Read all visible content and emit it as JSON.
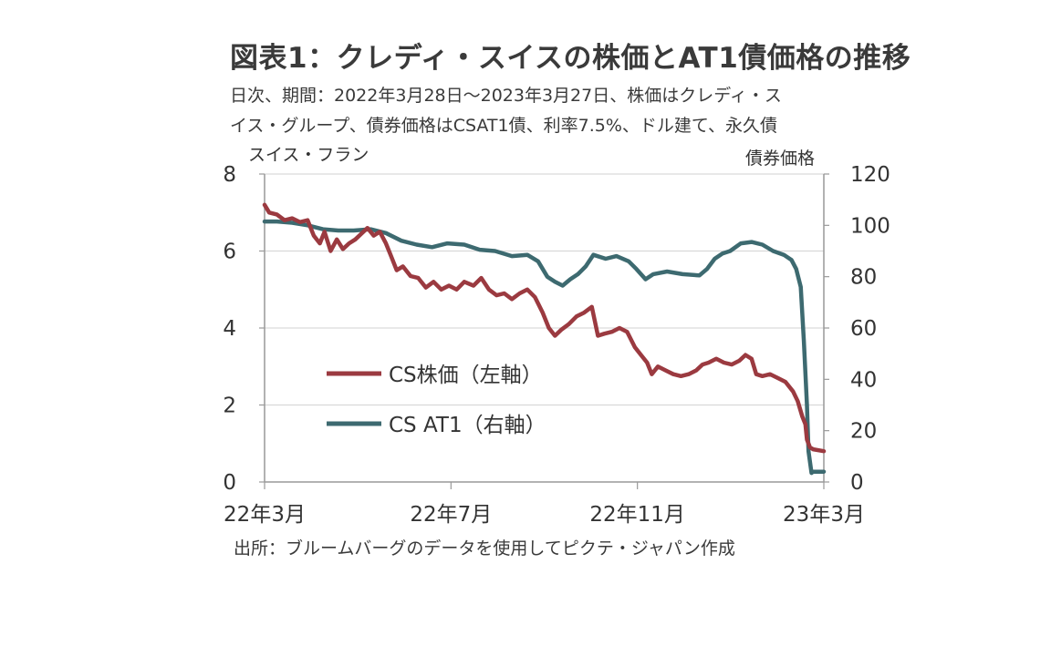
{
  "header": {
    "title": "図表1：クレディ・スイスの株価とAT1債価格の推移",
    "subtitle_line1": "日次、期間：2022年3月28日～2023年3月27日、株価はクレディ・ス",
    "subtitle_line2": "イス・グループ、債券価格はCSAT1債、利率7.5%、ドル建て、永久債"
  },
  "footer": {
    "source": "出所：ブルームバーグのデータを使用してピクテ・ジャパン作成"
  },
  "colors": {
    "stock": "#9b3a40",
    "at1": "#3d6a70",
    "axis": "#999999",
    "grid": "#d9d9d9"
  },
  "chart_data": {
    "type": "line",
    "title": "",
    "xlabel": "",
    "ylabel": "スイス・フラン",
    "y2label": "債券価格",
    "ylim": [
      0,
      8
    ],
    "y2lim": [
      0,
      120
    ],
    "yticks": [
      "0",
      "2",
      "4",
      "6",
      "8"
    ],
    "y2ticks": [
      "0",
      "20",
      "40",
      "60",
      "80",
      "100",
      "120"
    ],
    "xticks": [
      "22年3月",
      "22年7月",
      "22年11月",
      "23年3月"
    ],
    "xrange": [
      "2022-03-28",
      "2023-03-27"
    ],
    "grid": "horizontal",
    "legend_position": "center-left",
    "series": [
      {
        "name": "CS株価（左軸）",
        "axis": "left",
        "points": [
          [
            "2022-03-28",
            7.2
          ],
          [
            "2022-03-31",
            7.0
          ],
          [
            "2022-04-05",
            6.95
          ],
          [
            "2022-04-10",
            6.8
          ],
          [
            "2022-04-15",
            6.85
          ],
          [
            "2022-04-20",
            6.75
          ],
          [
            "2022-04-25",
            6.8
          ],
          [
            "2022-04-29",
            6.4
          ],
          [
            "2022-05-03",
            6.2
          ],
          [
            "2022-05-06",
            6.5
          ],
          [
            "2022-05-10",
            6.0
          ],
          [
            "2022-05-14",
            6.3
          ],
          [
            "2022-05-18",
            6.05
          ],
          [
            "2022-05-22",
            6.2
          ],
          [
            "2022-05-26",
            6.3
          ],
          [
            "2022-05-30",
            6.45
          ],
          [
            "2022-06-03",
            6.6
          ],
          [
            "2022-06-07",
            6.4
          ],
          [
            "2022-06-11",
            6.5
          ],
          [
            "2022-06-15",
            6.2
          ],
          [
            "2022-06-18",
            5.9
          ],
          [
            "2022-06-22",
            5.5
          ],
          [
            "2022-06-26",
            5.6
          ],
          [
            "2022-07-01",
            5.35
          ],
          [
            "2022-07-06",
            5.3
          ],
          [
            "2022-07-11",
            5.05
          ],
          [
            "2022-07-16",
            5.2
          ],
          [
            "2022-07-21",
            5.0
          ],
          [
            "2022-07-26",
            5.1
          ],
          [
            "2022-07-31",
            5.0
          ],
          [
            "2022-08-05",
            5.2
          ],
          [
            "2022-08-11",
            5.1
          ],
          [
            "2022-08-16",
            5.3
          ],
          [
            "2022-08-21",
            5.0
          ],
          [
            "2022-08-26",
            4.85
          ],
          [
            "2022-08-31",
            4.9
          ],
          [
            "2022-09-05",
            4.75
          ],
          [
            "2022-09-10",
            4.9
          ],
          [
            "2022-09-15",
            5.0
          ],
          [
            "2022-09-20",
            4.8
          ],
          [
            "2022-09-25",
            4.4
          ],
          [
            "2022-09-29",
            4.0
          ],
          [
            "2022-10-03",
            3.8
          ],
          [
            "2022-10-07",
            3.95
          ],
          [
            "2022-10-12",
            4.1
          ],
          [
            "2022-10-17",
            4.3
          ],
          [
            "2022-10-22",
            4.4
          ],
          [
            "2022-10-27",
            4.55
          ],
          [
            "2022-10-31",
            3.8
          ],
          [
            "2022-11-04",
            3.85
          ],
          [
            "2022-11-09",
            3.9
          ],
          [
            "2022-11-14",
            4.0
          ],
          [
            "2022-11-19",
            3.9
          ],
          [
            "2022-11-24",
            3.5
          ],
          [
            "2022-11-28",
            3.3
          ],
          [
            "2022-12-02",
            3.1
          ],
          [
            "2022-12-05",
            2.8
          ],
          [
            "2022-12-09",
            3.0
          ],
          [
            "2022-12-14",
            2.9
          ],
          [
            "2022-12-19",
            2.8
          ],
          [
            "2022-12-24",
            2.75
          ],
          [
            "2022-12-29",
            2.8
          ],
          [
            "2023-01-03",
            2.9
          ],
          [
            "2023-01-07",
            3.05
          ],
          [
            "2023-01-11",
            3.1
          ],
          [
            "2023-01-16",
            3.2
          ],
          [
            "2023-01-21",
            3.1
          ],
          [
            "2023-01-26",
            3.05
          ],
          [
            "2023-01-31",
            3.15
          ],
          [
            "2023-02-04",
            3.3
          ],
          [
            "2023-02-08",
            3.2
          ],
          [
            "2023-02-11",
            2.8
          ],
          [
            "2023-02-15",
            2.75
          ],
          [
            "2023-02-20",
            2.8
          ],
          [
            "2023-02-25",
            2.7
          ],
          [
            "2023-03-02",
            2.6
          ],
          [
            "2023-03-07",
            2.35
          ],
          [
            "2023-03-10",
            2.1
          ],
          [
            "2023-03-13",
            1.7
          ],
          [
            "2023-03-15",
            1.5
          ],
          [
            "2023-03-16",
            1.1
          ],
          [
            "2023-03-18",
            0.9
          ],
          [
            "2023-03-20",
            0.85
          ],
          [
            "2023-03-27",
            0.8
          ]
        ]
      },
      {
        "name": "CS AT1（右軸）",
        "axis": "right",
        "points": [
          [
            "2022-03-28",
            101.5
          ],
          [
            "2022-04-05",
            101.5
          ],
          [
            "2022-04-15",
            101.0
          ],
          [
            "2022-04-25",
            100.0
          ],
          [
            "2022-05-05",
            98.5
          ],
          [
            "2022-05-15",
            98.0
          ],
          [
            "2022-05-25",
            98.0
          ],
          [
            "2022-06-05",
            98.5
          ],
          [
            "2022-06-15",
            97.0
          ],
          [
            "2022-06-25",
            94.0
          ],
          [
            "2022-07-05",
            92.5
          ],
          [
            "2022-07-15",
            91.5
          ],
          [
            "2022-07-25",
            93.0
          ],
          [
            "2022-08-05",
            92.5
          ],
          [
            "2022-08-15",
            90.5
          ],
          [
            "2022-08-25",
            90.0
          ],
          [
            "2022-09-05",
            88.0
          ],
          [
            "2022-09-15",
            88.5
          ],
          [
            "2022-09-22",
            86.0
          ],
          [
            "2022-09-28",
            80.0
          ],
          [
            "2022-10-03",
            78.0
          ],
          [
            "2022-10-08",
            76.5
          ],
          [
            "2022-10-13",
            79.0
          ],
          [
            "2022-10-18",
            81.0
          ],
          [
            "2022-10-23",
            84.0
          ],
          [
            "2022-10-28",
            88.5
          ],
          [
            "2022-11-05",
            87.0
          ],
          [
            "2022-11-12",
            88.0
          ],
          [
            "2022-11-20",
            86.0
          ],
          [
            "2022-11-25",
            83.0
          ],
          [
            "2022-12-01",
            79.0
          ],
          [
            "2022-12-06",
            81.0
          ],
          [
            "2022-12-15",
            82.0
          ],
          [
            "2022-12-25",
            81.0
          ],
          [
            "2023-01-05",
            80.5
          ],
          [
            "2023-01-10",
            83.0
          ],
          [
            "2023-01-15",
            87.0
          ],
          [
            "2023-01-20",
            89.0
          ],
          [
            "2023-01-25",
            90.0
          ],
          [
            "2023-02-01",
            93.0
          ],
          [
            "2023-02-08",
            93.5
          ],
          [
            "2023-02-15",
            92.5
          ],
          [
            "2023-02-22",
            90.0
          ],
          [
            "2023-03-01",
            88.5
          ],
          [
            "2023-03-06",
            86.5
          ],
          [
            "2023-03-09",
            83.0
          ],
          [
            "2023-03-12",
            76.0
          ],
          [
            "2023-03-14",
            55.0
          ],
          [
            "2023-03-16",
            30.0
          ],
          [
            "2023-03-17",
            12.0
          ],
          [
            "2023-03-19",
            3.5
          ],
          [
            "2023-03-20",
            4.0
          ],
          [
            "2023-03-27",
            4.0
          ]
        ]
      }
    ]
  }
}
